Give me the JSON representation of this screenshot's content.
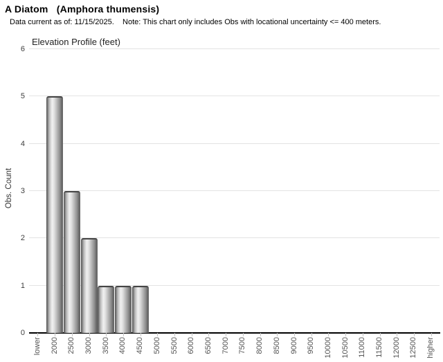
{
  "header": {
    "title": "A Diatom   (Amphora thumensis)",
    "subtitle": "Data current as of: 11/15/2025.    Note: This chart only includes Obs with locational uncertainty <= 400 meters."
  },
  "chart_data": {
    "type": "bar",
    "title": "Elevation Profile (feet)",
    "xlabel": "",
    "ylabel": "Obs. Count",
    "ylim": [
      0,
      6
    ],
    "yticks": [
      0,
      1,
      2,
      3,
      4,
      5,
      6
    ],
    "grid": true,
    "legend_position": "none",
    "categories": [
      "lower",
      "2000",
      "2500",
      "3000",
      "3500",
      "4000",
      "4500",
      "5000",
      "5500",
      "6000",
      "6500",
      "7000",
      "7500",
      "8000",
      "8500",
      "9000",
      "9500",
      "10000",
      "10500",
      "11000",
      "11500",
      "12000",
      "12500",
      "higher"
    ],
    "values": [
      0,
      5,
      3,
      2,
      1,
      1,
      1,
      0,
      0,
      0,
      0,
      0,
      0,
      0,
      0,
      0,
      0,
      0,
      0,
      0,
      0,
      0,
      0,
      0
    ]
  },
  "style": {
    "grid_color": "#e3e3e3",
    "axis_color": "#000000",
    "tick_mark_color": "#c6c6c6",
    "tick_label_color": "#555555",
    "bar_edge_color": "#454545",
    "bar_highlight_color": "#f0f0f0",
    "bar_shadow_color": "#5f5f5f",
    "background_color": "#ffffff"
  }
}
